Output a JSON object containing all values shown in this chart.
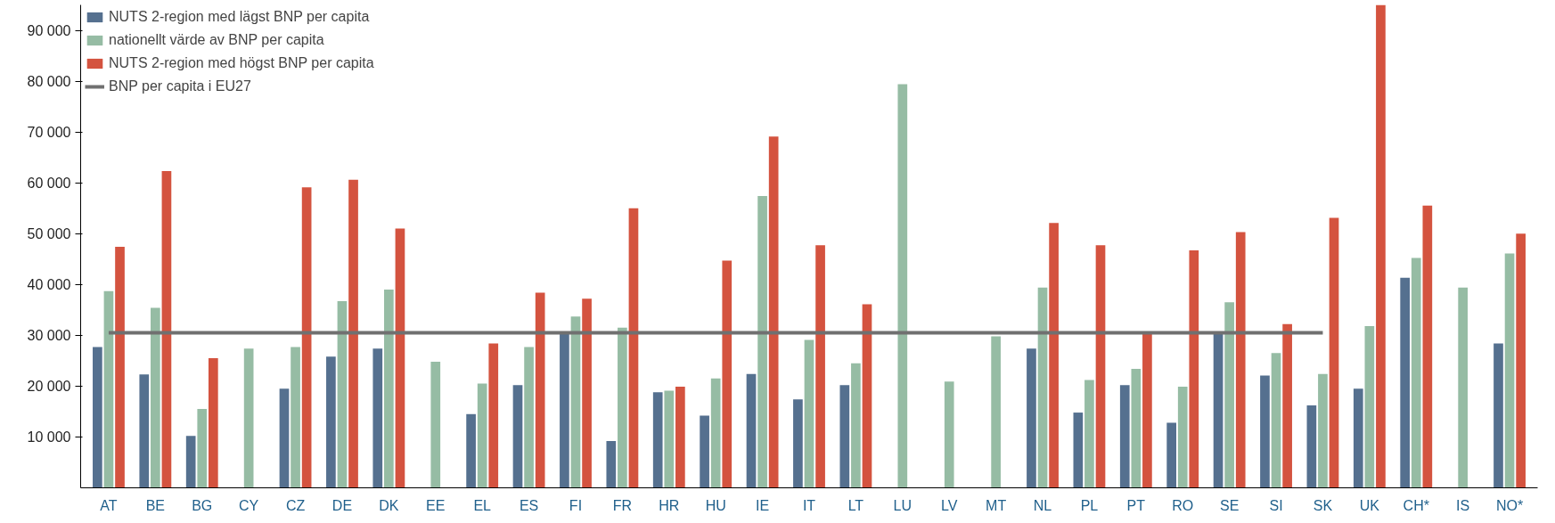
{
  "chart_data": {
    "type": "bar",
    "categories": [
      "AT",
      "BE",
      "BG",
      "CY",
      "CZ",
      "DE",
      "DK",
      "EE",
      "EL",
      "ES",
      "FI",
      "FR",
      "HR",
      "HU",
      "IE",
      "IT",
      "LT",
      "LU",
      "LV",
      "MT",
      "NL",
      "PL",
      "PT",
      "RO",
      "SE",
      "SI",
      "SK",
      "UK",
      "CH*",
      "IS",
      "NO*"
    ],
    "series": [
      {
        "name": "NUTS 2-region med lägst BNP per capita",
        "color": "#55708f",
        "values": [
          27700,
          22300,
          10200,
          null,
          19500,
          25800,
          27400,
          null,
          14500,
          20200,
          30500,
          9200,
          18800,
          14200,
          22400,
          17400,
          20200,
          null,
          null,
          null,
          27400,
          14800,
          20200,
          12800,
          30700,
          22100,
          16200,
          19500,
          41300,
          null,
          28400
        ]
      },
      {
        "name": "nationellt värde av BNP per capita",
        "color": "#96bca4",
        "values": [
          38700,
          35400,
          15500,
          27400,
          27700,
          36700,
          39000,
          24800,
          20500,
          27700,
          33700,
          31500,
          19100,
          21500,
          57400,
          29100,
          24500,
          79400,
          20900,
          29800,
          39400,
          21200,
          23400,
          19900,
          36500,
          26500,
          22400,
          31800,
          45200,
          39400,
          46100
        ]
      },
      {
        "name": "NUTS 2-region med högst BNP per capita",
        "color": "#d4533f",
        "values": [
          47400,
          62300,
          25500,
          null,
          59100,
          60600,
          51000,
          null,
          28400,
          38400,
          37200,
          55000,
          19900,
          44700,
          69100,
          47700,
          36100,
          null,
          null,
          null,
          52100,
          47700,
          30700,
          46700,
          50300,
          32200,
          53100,
          95000,
          55500,
          null,
          50000
        ]
      },
      {
        "name": "BNP per capita i EU27",
        "type": "line",
        "color": "#707070",
        "values": [
          30500,
          30500,
          30500,
          30500,
          30500,
          30500,
          30500,
          30500,
          30500,
          30500,
          30500,
          30500,
          30500,
          30500,
          30500,
          30500,
          30500,
          30500,
          30500,
          30500,
          30500,
          30500,
          30500,
          30500,
          30500,
          30500,
          30500,
          null,
          null,
          null,
          null
        ]
      }
    ],
    "ylim": [
      0,
      95000
    ],
    "yticks": [
      {
        "value": 10000,
        "label": "10 000"
      },
      {
        "value": 20000,
        "label": "20 000"
      },
      {
        "value": 30000,
        "label": "30 000"
      },
      {
        "value": 40000,
        "label": "40 000"
      },
      {
        "value": 50000,
        "label": "50 000"
      },
      {
        "value": 60000,
        "label": "60 000"
      },
      {
        "value": 70000,
        "label": "70 000"
      },
      {
        "value": 80000,
        "label": "80 000"
      },
      {
        "value": 90000,
        "label": "90 000"
      }
    ],
    "grid": false,
    "legend": "top left"
  }
}
